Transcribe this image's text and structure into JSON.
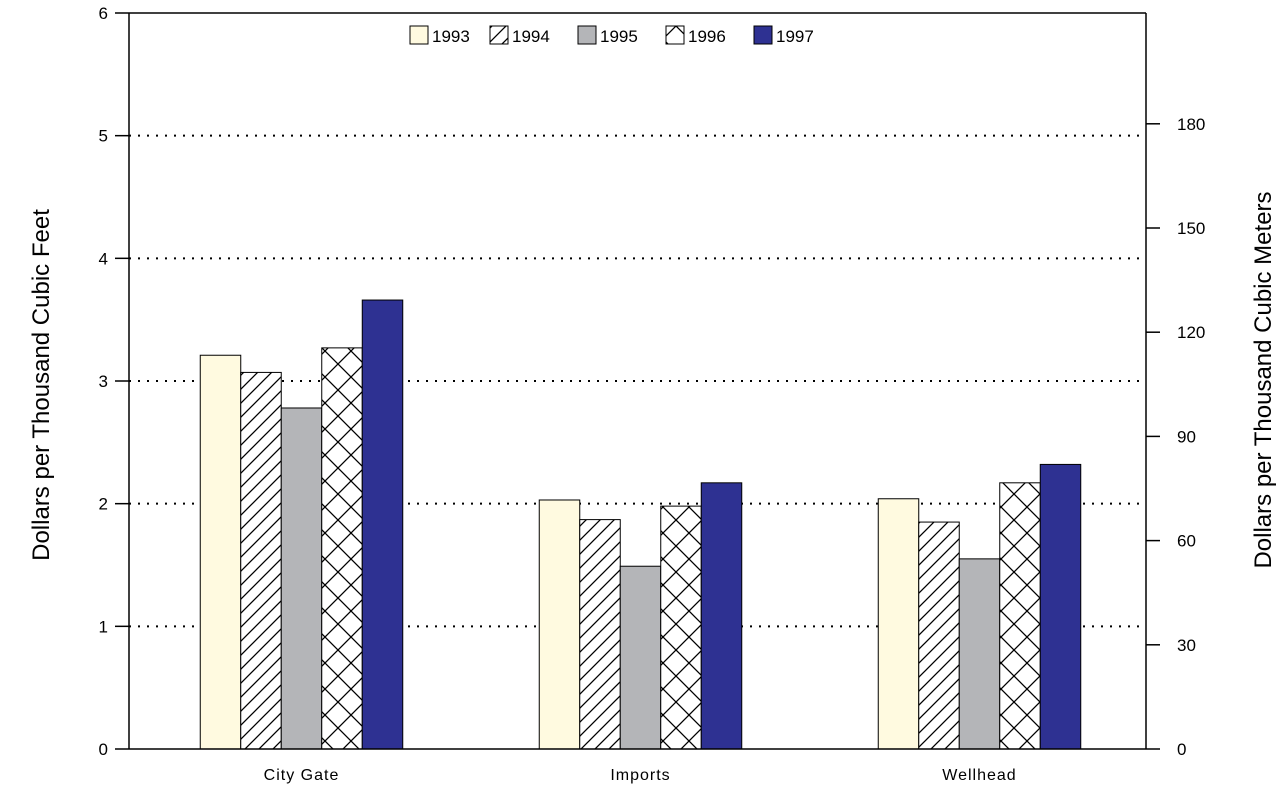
{
  "chart_data": {
    "type": "bar",
    "categories": [
      "City Gate",
      "Imports",
      "Wellhead"
    ],
    "series": [
      {
        "name": "1993",
        "values": [
          3.21,
          2.03,
          2.04
        ],
        "color": "#fffae0",
        "pattern": "solid"
      },
      {
        "name": "1994",
        "values": [
          3.07,
          1.87,
          1.85
        ],
        "color": "#ffffff",
        "pattern": "diagonal-hatch"
      },
      {
        "name": "1995",
        "values": [
          2.78,
          1.49,
          1.55
        ],
        "color": "#b4b5b8",
        "pattern": "solid"
      },
      {
        "name": "1996",
        "values": [
          3.27,
          1.98,
          2.17
        ],
        "color": "#ffffff",
        "pattern": "cross-hatch"
      },
      {
        "name": "1997",
        "values": [
          3.66,
          2.17,
          2.32
        ],
        "color": "#2e3192",
        "pattern": "solid"
      }
    ],
    "ylabel": "Dollars per Thousand Cubic Feet",
    "y2label": "Dollars per Thousand Cubic Meters",
    "ylim": [
      0,
      6
    ],
    "yticks": [
      0,
      1,
      2,
      3,
      4,
      5,
      6
    ],
    "y2lim": [
      0,
      211.9
    ],
    "y2ticks": [
      0,
      30,
      60,
      90,
      120,
      150,
      180
    ],
    "grid": "horizontal-dotted",
    "legend_position": "top-center"
  }
}
